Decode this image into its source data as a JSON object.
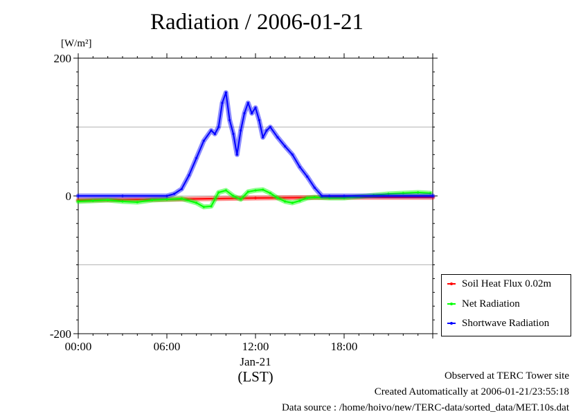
{
  "title": "Radiation / 2006-01-21",
  "unit_label": "[W/m²]",
  "footer": {
    "line1": "Observed at TERC Tower site",
    "line2": "Created Automatically at 2006-01-21/23:55:18",
    "line3": "Data source : /home/hoivo/new/TERC-data/sorted_data/MET.10s.dat"
  },
  "chart_data": {
    "type": "line",
    "title": "Radiation / 2006-01-21",
    "xlabel": "(LST)",
    "ylabel": "[W/m²]",
    "x_date_label": "Jan-21",
    "xlim": [
      "00:00",
      "24:00"
    ],
    "ylim": [
      -200,
      200
    ],
    "x_ticks": [
      "00:00",
      "06:00",
      "12:00",
      "18:00"
    ],
    "y_ticks": [
      "-200",
      "0",
      "200"
    ],
    "grid": "horizontal",
    "legend_position": "bottom-right",
    "series": [
      {
        "name": "Soil Heat Flux 0.02m",
        "color": "#ff0000",
        "x": [
          "00:00",
          "06:00",
          "12:00",
          "18:00",
          "24:00"
        ],
        "y": [
          -6,
          -5,
          -3,
          -2,
          -2
        ]
      },
      {
        "name": "Net Radiation",
        "color": "#00ff00",
        "x": [
          "00:00",
          "01:00",
          "02:00",
          "03:00",
          "04:00",
          "05:00",
          "06:00",
          "07:00",
          "08:00",
          "08:30",
          "09:00",
          "09:30",
          "10:00",
          "10:30",
          "11:00",
          "11:30",
          "12:00",
          "12:30",
          "13:00",
          "13:30",
          "14:00",
          "14:30",
          "15:00",
          "15:30",
          "16:00",
          "17:00",
          "18:00",
          "19:00",
          "20:00",
          "21:00",
          "22:00",
          "23:00",
          "23:50"
        ],
        "y": [
          -8,
          -7,
          -6,
          -8,
          -9,
          -6,
          -5,
          -4,
          -10,
          -16,
          -15,
          5,
          8,
          0,
          -5,
          6,
          8,
          9,
          4,
          -3,
          -8,
          -10,
          -7,
          -3,
          -2,
          -3,
          -3,
          -1,
          1,
          3,
          4,
          5,
          4
        ]
      },
      {
        "name": "Shortwave Radiation",
        "color": "#0000ff",
        "x": [
          "00:00",
          "03:00",
          "06:00",
          "06:30",
          "07:00",
          "07:30",
          "08:00",
          "08:30",
          "09:00",
          "09:15",
          "09:30",
          "09:45",
          "10:00",
          "10:15",
          "10:30",
          "10:45",
          "11:00",
          "11:15",
          "11:30",
          "11:45",
          "12:00",
          "12:15",
          "12:30",
          "12:45",
          "13:00",
          "13:30",
          "14:00",
          "14:30",
          "15:00",
          "15:30",
          "16:00",
          "16:30",
          "17:00",
          "18:00",
          "24:00"
        ],
        "y": [
          0,
          0,
          0,
          3,
          10,
          30,
          55,
          80,
          95,
          90,
          100,
          135,
          150,
          110,
          90,
          60,
          95,
          120,
          135,
          120,
          128,
          110,
          85,
          95,
          100,
          85,
          72,
          60,
          42,
          28,
          12,
          0,
          0,
          0,
          0
        ]
      }
    ]
  }
}
